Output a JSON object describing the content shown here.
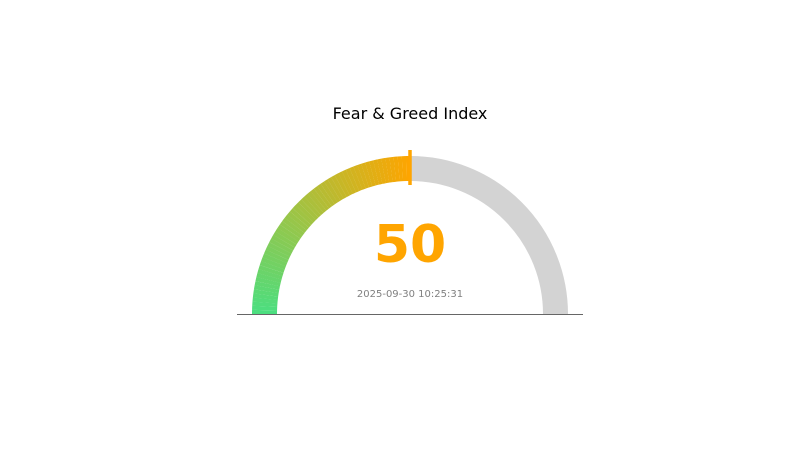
{
  "chart_data": {
    "type": "gauge",
    "title": "Fear & Greed Index",
    "value": 50,
    "value_label": "50",
    "range": [
      0,
      100
    ],
    "timestamp": "2025-09-30 10:25:31",
    "colors": {
      "gradient_start": "#4ade80",
      "gradient_end": "#ffa500",
      "track": "#d3d3d3",
      "value_text": "#ffa500",
      "needle": "#ffa500",
      "timestamp_text": "#808080",
      "baseline": "#666666"
    }
  }
}
